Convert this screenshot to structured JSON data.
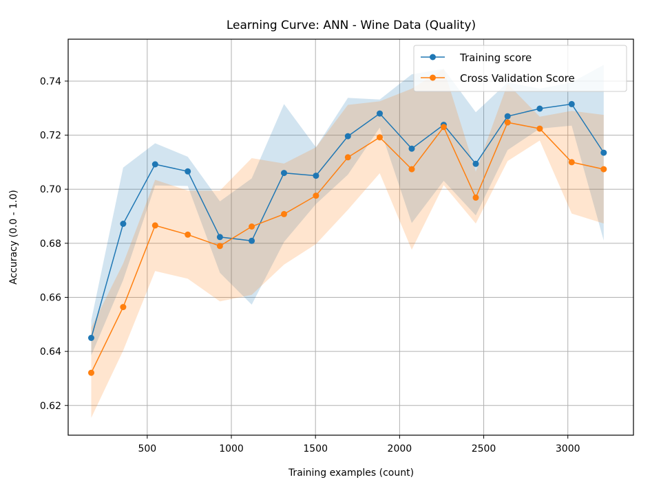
{
  "chart_data": {
    "type": "line",
    "title": "Learning Curve: ANN - Wine Data (Quality)",
    "xlabel": "Training examples (count)",
    "ylabel": "Accuracy (0.0 - 1.0)",
    "xlim": [
      30,
      3390
    ],
    "ylim": [
      0.609,
      0.7555
    ],
    "xticks": [
      500,
      1000,
      1500,
      2000,
      2500,
      3000
    ],
    "yticks": [
      0.62,
      0.64,
      0.66,
      0.68,
      0.7,
      0.72,
      0.74
    ],
    "grid": true,
    "legend_position": "top-right",
    "x": [
      167,
      357,
      547,
      741,
      932,
      1121,
      1313,
      1503,
      1693,
      1882,
      2072,
      2262,
      2453,
      2642,
      2833,
      3023,
      3213
    ],
    "series": [
      {
        "name": "Training score",
        "color": "#1f77b4",
        "values": [
          0.645,
          0.6872,
          0.7092,
          0.7066,
          0.6823,
          0.6809,
          0.706,
          0.705,
          0.7196,
          0.728,
          0.715,
          0.7238,
          0.7094,
          0.727,
          0.7298,
          0.7315,
          0.7135
        ],
        "band_upper": [
          0.6515,
          0.708,
          0.717,
          0.712,
          0.6955,
          0.704,
          0.7315,
          0.7155,
          0.7338,
          0.7332,
          0.7425,
          0.7445,
          0.7285,
          0.7395,
          0.7372,
          0.7395,
          0.746
        ],
        "band_lower": [
          0.6385,
          0.6664,
          0.7014,
          0.7012,
          0.6691,
          0.6573,
          0.6805,
          0.6945,
          0.7054,
          0.7228,
          0.6875,
          0.7031,
          0.6903,
          0.7145,
          0.7224,
          0.7235,
          0.681
        ]
      },
      {
        "name": "Cross Validation Score",
        "color": "#ff7f0e",
        "values": [
          0.6321,
          0.6564,
          0.6866,
          0.6832,
          0.679,
          0.6862,
          0.6908,
          0.6976,
          0.7118,
          0.7192,
          0.7074,
          0.723,
          0.6969,
          0.7247,
          0.7224,
          0.71,
          0.7074
        ],
        "band_upper": [
          0.6488,
          0.6725,
          0.7035,
          0.6995,
          0.6995,
          0.7115,
          0.7095,
          0.7155,
          0.7312,
          0.7325,
          0.7372,
          0.7445,
          0.7065,
          0.739,
          0.7268,
          0.729,
          0.7275
        ],
        "band_lower": [
          0.6154,
          0.6403,
          0.6697,
          0.6669,
          0.6585,
          0.6609,
          0.6721,
          0.6797,
          0.6924,
          0.7059,
          0.6776,
          0.7015,
          0.6873,
          0.7104,
          0.718,
          0.691,
          0.6873
        ]
      }
    ]
  }
}
